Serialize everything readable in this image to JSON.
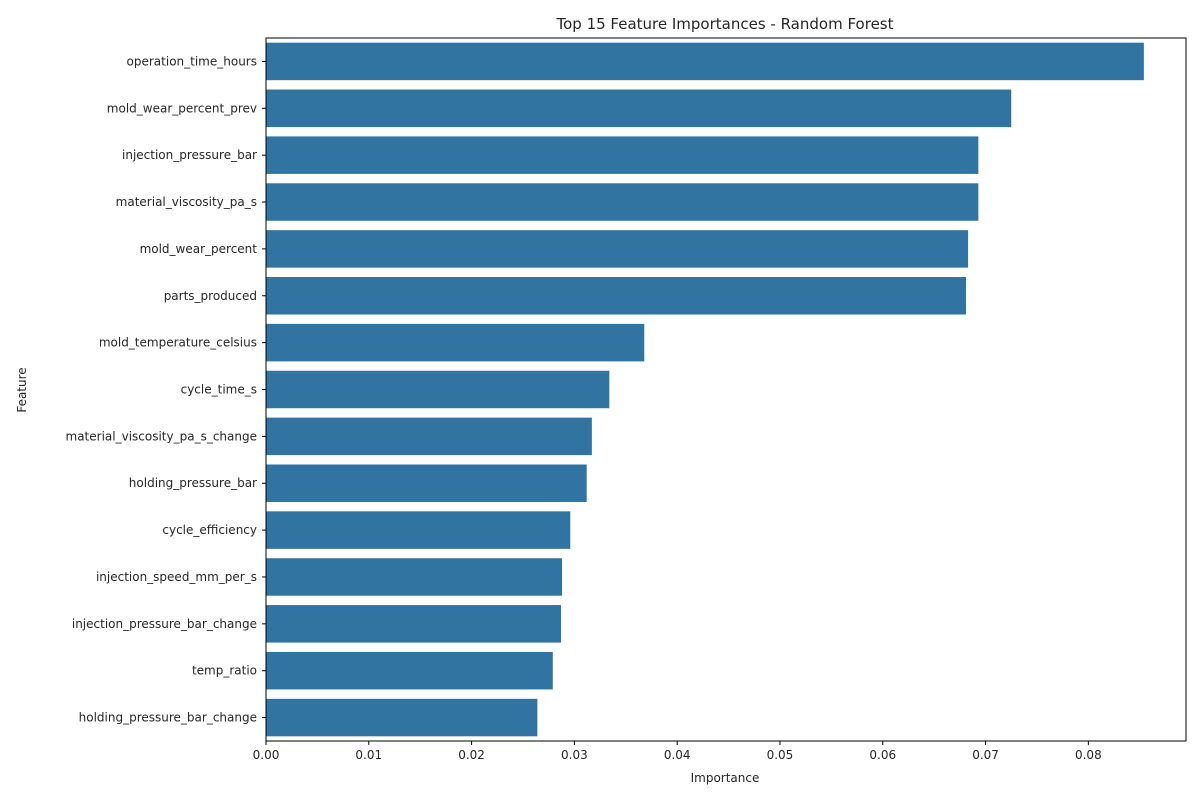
{
  "chart_data": {
    "type": "bar",
    "orientation": "horizontal",
    "title": "Top 15 Feature Importances - Random Forest",
    "xlabel": "Importance",
    "ylabel": "Feature",
    "xlim": [
      0,
      0.0895
    ],
    "xticks": [
      "0.00",
      "0.01",
      "0.02",
      "0.03",
      "0.04",
      "0.05",
      "0.06",
      "0.07",
      "0.08"
    ],
    "xtick_values": [
      0,
      0.01,
      0.02,
      0.03,
      0.04,
      0.05,
      0.06,
      0.07,
      0.08
    ],
    "categories": [
      "operation_time_hours",
      "mold_wear_percent_prev",
      "injection_pressure_bar",
      "material_viscosity_pa_s",
      "mold_wear_percent",
      "parts_produced",
      "mold_temperature_celsius",
      "cycle_time_s",
      "material_viscosity_pa_s_change",
      "holding_pressure_bar",
      "cycle_efficiency",
      "injection_speed_mm_per_s",
      "injection_pressure_bar_change",
      "temp_ratio",
      "holding_pressure_bar_change"
    ],
    "values": [
      0.0854,
      0.0725,
      0.0693,
      0.0693,
      0.0683,
      0.0681,
      0.0368,
      0.0334,
      0.0317,
      0.0312,
      0.0296,
      0.0288,
      0.0287,
      0.0279,
      0.0264
    ],
    "bar_color": "#3274a1",
    "grid": false,
    "legend": "none"
  }
}
